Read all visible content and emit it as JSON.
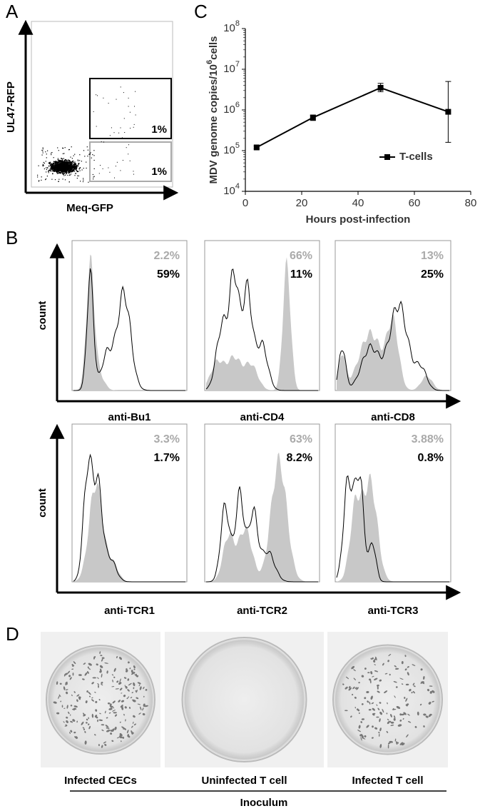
{
  "panel_a": {
    "letter": "A",
    "y_label": "UL47-RFP",
    "x_label": "Meq-GFP",
    "gate_labels": [
      "1%",
      "1%"
    ]
  },
  "chart_data": {
    "type": "line",
    "letter": "C",
    "y_label": [
      "MDV genome copies/10",
      "6",
      "cells"
    ],
    "x_label": "Hours post-infection",
    "x": [
      4,
      24,
      48,
      72
    ],
    "series": [
      {
        "name": "T-cells",
        "color": "#000000",
        "values": [
          120000,
          650000,
          3500000,
          900000
        ],
        "ylow": [
          110000,
          550000,
          2800000,
          160000
        ],
        "yhigh": [
          130000,
          750000,
          4500000,
          5000000
        ]
      }
    ],
    "xlim": [
      0,
      80
    ],
    "xticks": [
      0,
      20,
      40,
      60,
      80
    ],
    "ylim": [
      10000,
      100000000
    ],
    "yticks": [
      {
        "value": 10000,
        "label": "10",
        "exponent": "4"
      },
      {
        "value": 100000,
        "label": "10",
        "exponent": "5"
      },
      {
        "value": 1000000,
        "label": "10",
        "exponent": "6"
      },
      {
        "value": 10000000,
        "label": "10",
        "exponent": "7"
      },
      {
        "value": 100000000,
        "label": "10",
        "exponent": "8"
      }
    ],
    "log_scale": true,
    "legend": "lower right"
  },
  "panel_b": {
    "letter": "B",
    "rows": [
      {
        "y_label": "count",
        "panels": [
          {
            "label": "anti-Bu1",
            "gray_percent": "2.2%",
            "black_percent": "59%"
          },
          {
            "label": "anti-CD4",
            "gray_percent": "66%",
            "black_percent": "11%"
          },
          {
            "label": "anti-CD8",
            "gray_percent": "13%",
            "black_percent": "25%"
          }
        ]
      },
      {
        "y_label": "count",
        "panels": [
          {
            "label": "anti-TCR1",
            "gray_percent": "3.3%",
            "black_percent": "1.7%"
          },
          {
            "label": "anti-TCR2",
            "gray_percent": "63%",
            "black_percent": "8.2%"
          },
          {
            "label": "anti-TCR3",
            "gray_percent": "3.88%",
            "black_percent": "0.8%"
          }
        ]
      }
    ]
  },
  "panel_d": {
    "letter": "D",
    "plates": [
      "Infected CECs",
      "Uninfected T cell",
      "Infected T cell"
    ],
    "group_label": "Inoculum"
  }
}
